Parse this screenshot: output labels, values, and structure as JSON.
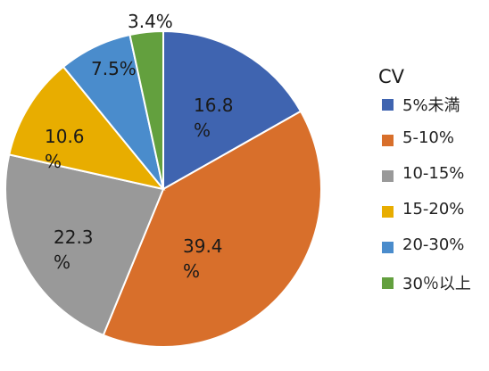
{
  "chart_data": {
    "type": "pie",
    "legend_title": "CV",
    "legend_position": "right",
    "slices": [
      {
        "label": "5%未満",
        "value": 16.8,
        "display": [
          "16.8",
          "%"
        ],
        "color": "#3f64b0"
      },
      {
        "label": "5-10%",
        "value": 39.4,
        "display": [
          "39.4",
          "%"
        ],
        "color": "#d86f2b"
      },
      {
        "label": "10-15%",
        "value": 22.3,
        "display": [
          "22.3",
          "%"
        ],
        "color": "#999999"
      },
      {
        "label": "15-20%",
        "value": 10.6,
        "display": [
          "10.6",
          "%"
        ],
        "color": "#e8ad00"
      },
      {
        "label": "20-30%",
        "value": 7.5,
        "display": [
          "7.5%"
        ],
        "color": "#4a8ccc"
      },
      {
        "label": "30％以上",
        "value": 3.4,
        "display": [
          "3.4%"
        ],
        "color": "#63a03e"
      }
    ]
  }
}
